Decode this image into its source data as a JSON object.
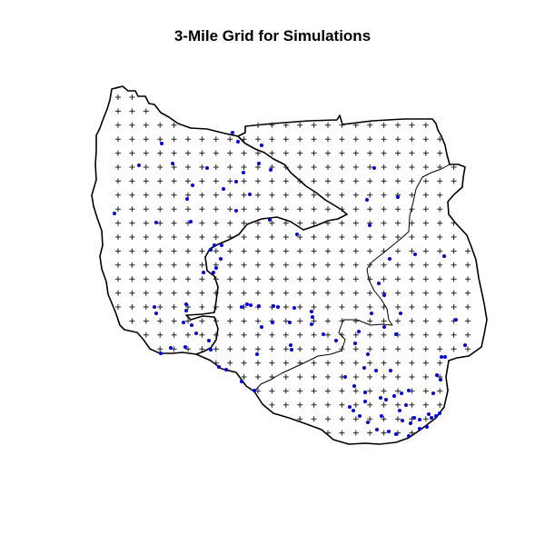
{
  "title": "3-Mile Grid for Simulations",
  "colors": {
    "grid_marker": "#222222",
    "points": "#0000ee",
    "boundary": "#000000",
    "background": "#ffffff"
  },
  "marker_symbols": {
    "grid": "plus",
    "points": "filled-circle"
  }
}
